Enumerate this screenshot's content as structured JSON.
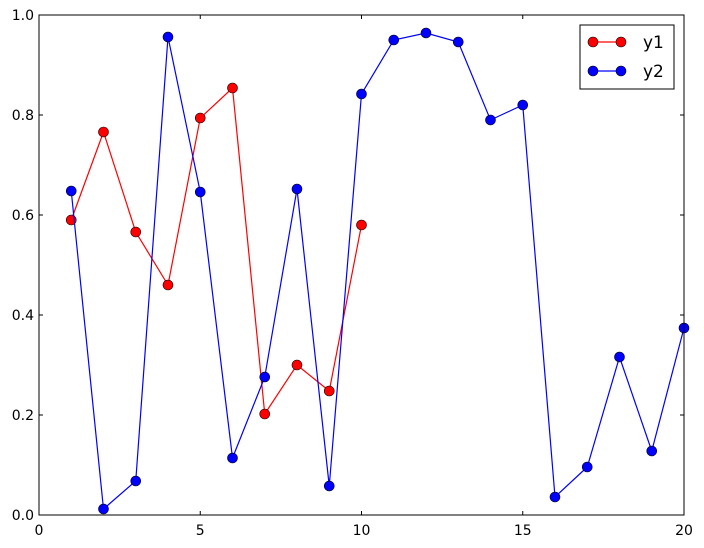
{
  "chart_data": {
    "type": "line",
    "title": "",
    "xlabel": "",
    "ylabel": "",
    "xlim": [
      0,
      20
    ],
    "ylim": [
      0,
      1.0
    ],
    "xticks": [
      "0",
      "5",
      "10",
      "15",
      "20"
    ],
    "yticks": [
      "0.0",
      "0.2",
      "0.4",
      "0.6",
      "0.8",
      "1.0"
    ],
    "grid": false,
    "legend_position": "top-right",
    "series": [
      {
        "name": "y1",
        "color": "#ff0000",
        "marker": "circle",
        "x": [
          1,
          2,
          3,
          4,
          5,
          6,
          7,
          8,
          9,
          10
        ],
        "y": [
          0.59,
          0.766,
          0.566,
          0.46,
          0.794,
          0.854,
          0.202,
          0.3,
          0.248,
          0.58
        ]
      },
      {
        "name": "y2",
        "color": "#0000ff",
        "marker": "circle",
        "x": [
          1,
          2,
          3,
          4,
          5,
          6,
          7,
          8,
          9,
          10,
          11,
          12,
          13,
          14,
          15,
          16,
          17,
          18,
          19,
          20
        ],
        "y": [
          0.648,
          0.012,
          0.068,
          0.956,
          0.646,
          0.114,
          0.276,
          0.652,
          0.058,
          0.842,
          0.95,
          0.964,
          0.946,
          0.79,
          0.82,
          0.036,
          0.096,
          0.316,
          0.128,
          0.374
        ]
      }
    ]
  }
}
